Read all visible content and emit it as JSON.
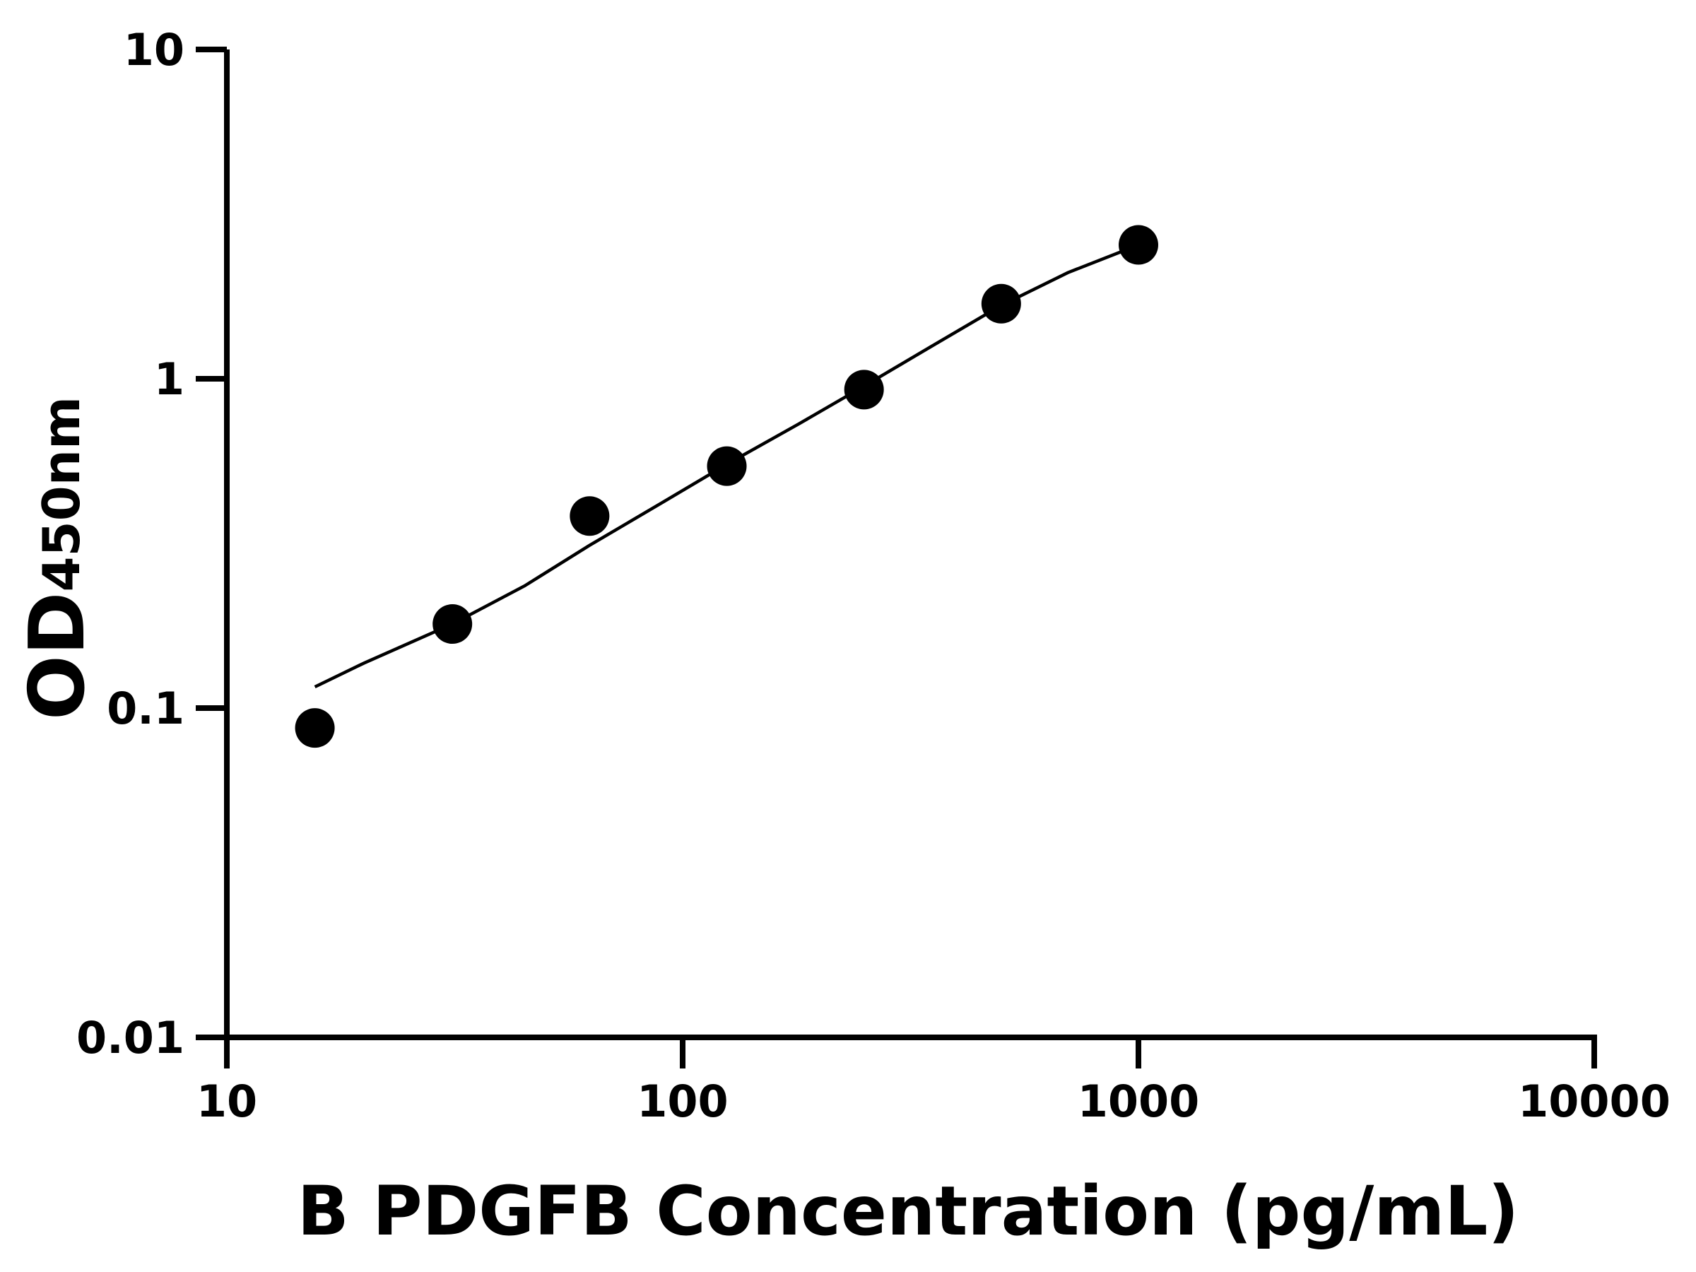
{
  "chart_data": {
    "type": "scatter",
    "xlabel": "B PDGFB Concentration (pg/mL)",
    "ylabel_main": "OD",
    "ylabel_sub": "450nm",
    "x_scale": "log",
    "y_scale": "log",
    "xlim": [
      10,
      10000
    ],
    "ylim": [
      0.01,
      10
    ],
    "x_ticks": [
      "10",
      "100",
      "1000",
      "10000"
    ],
    "y_ticks": [
      "0.01",
      "0.1",
      "1",
      "10"
    ],
    "grid": false,
    "legend": "none",
    "colors": {
      "points": "#000000",
      "curve": "#000000",
      "axes": "#000000"
    },
    "points": {
      "x": [
        15.6,
        31.25,
        62.5,
        125,
        250,
        500,
        1000
      ],
      "y": [
        0.087,
        0.18,
        0.383,
        0.543,
        0.927,
        1.69,
        2.55
      ]
    },
    "fit_curve": {
      "x": [
        15.6,
        20,
        31.25,
        45,
        62.5,
        90,
        125,
        180,
        250,
        350,
        500,
        700,
        1000
      ],
      "y": [
        0.116,
        0.137,
        0.18,
        0.235,
        0.312,
        0.42,
        0.55,
        0.73,
        0.95,
        1.25,
        1.67,
        2.1,
        2.55
      ]
    }
  }
}
